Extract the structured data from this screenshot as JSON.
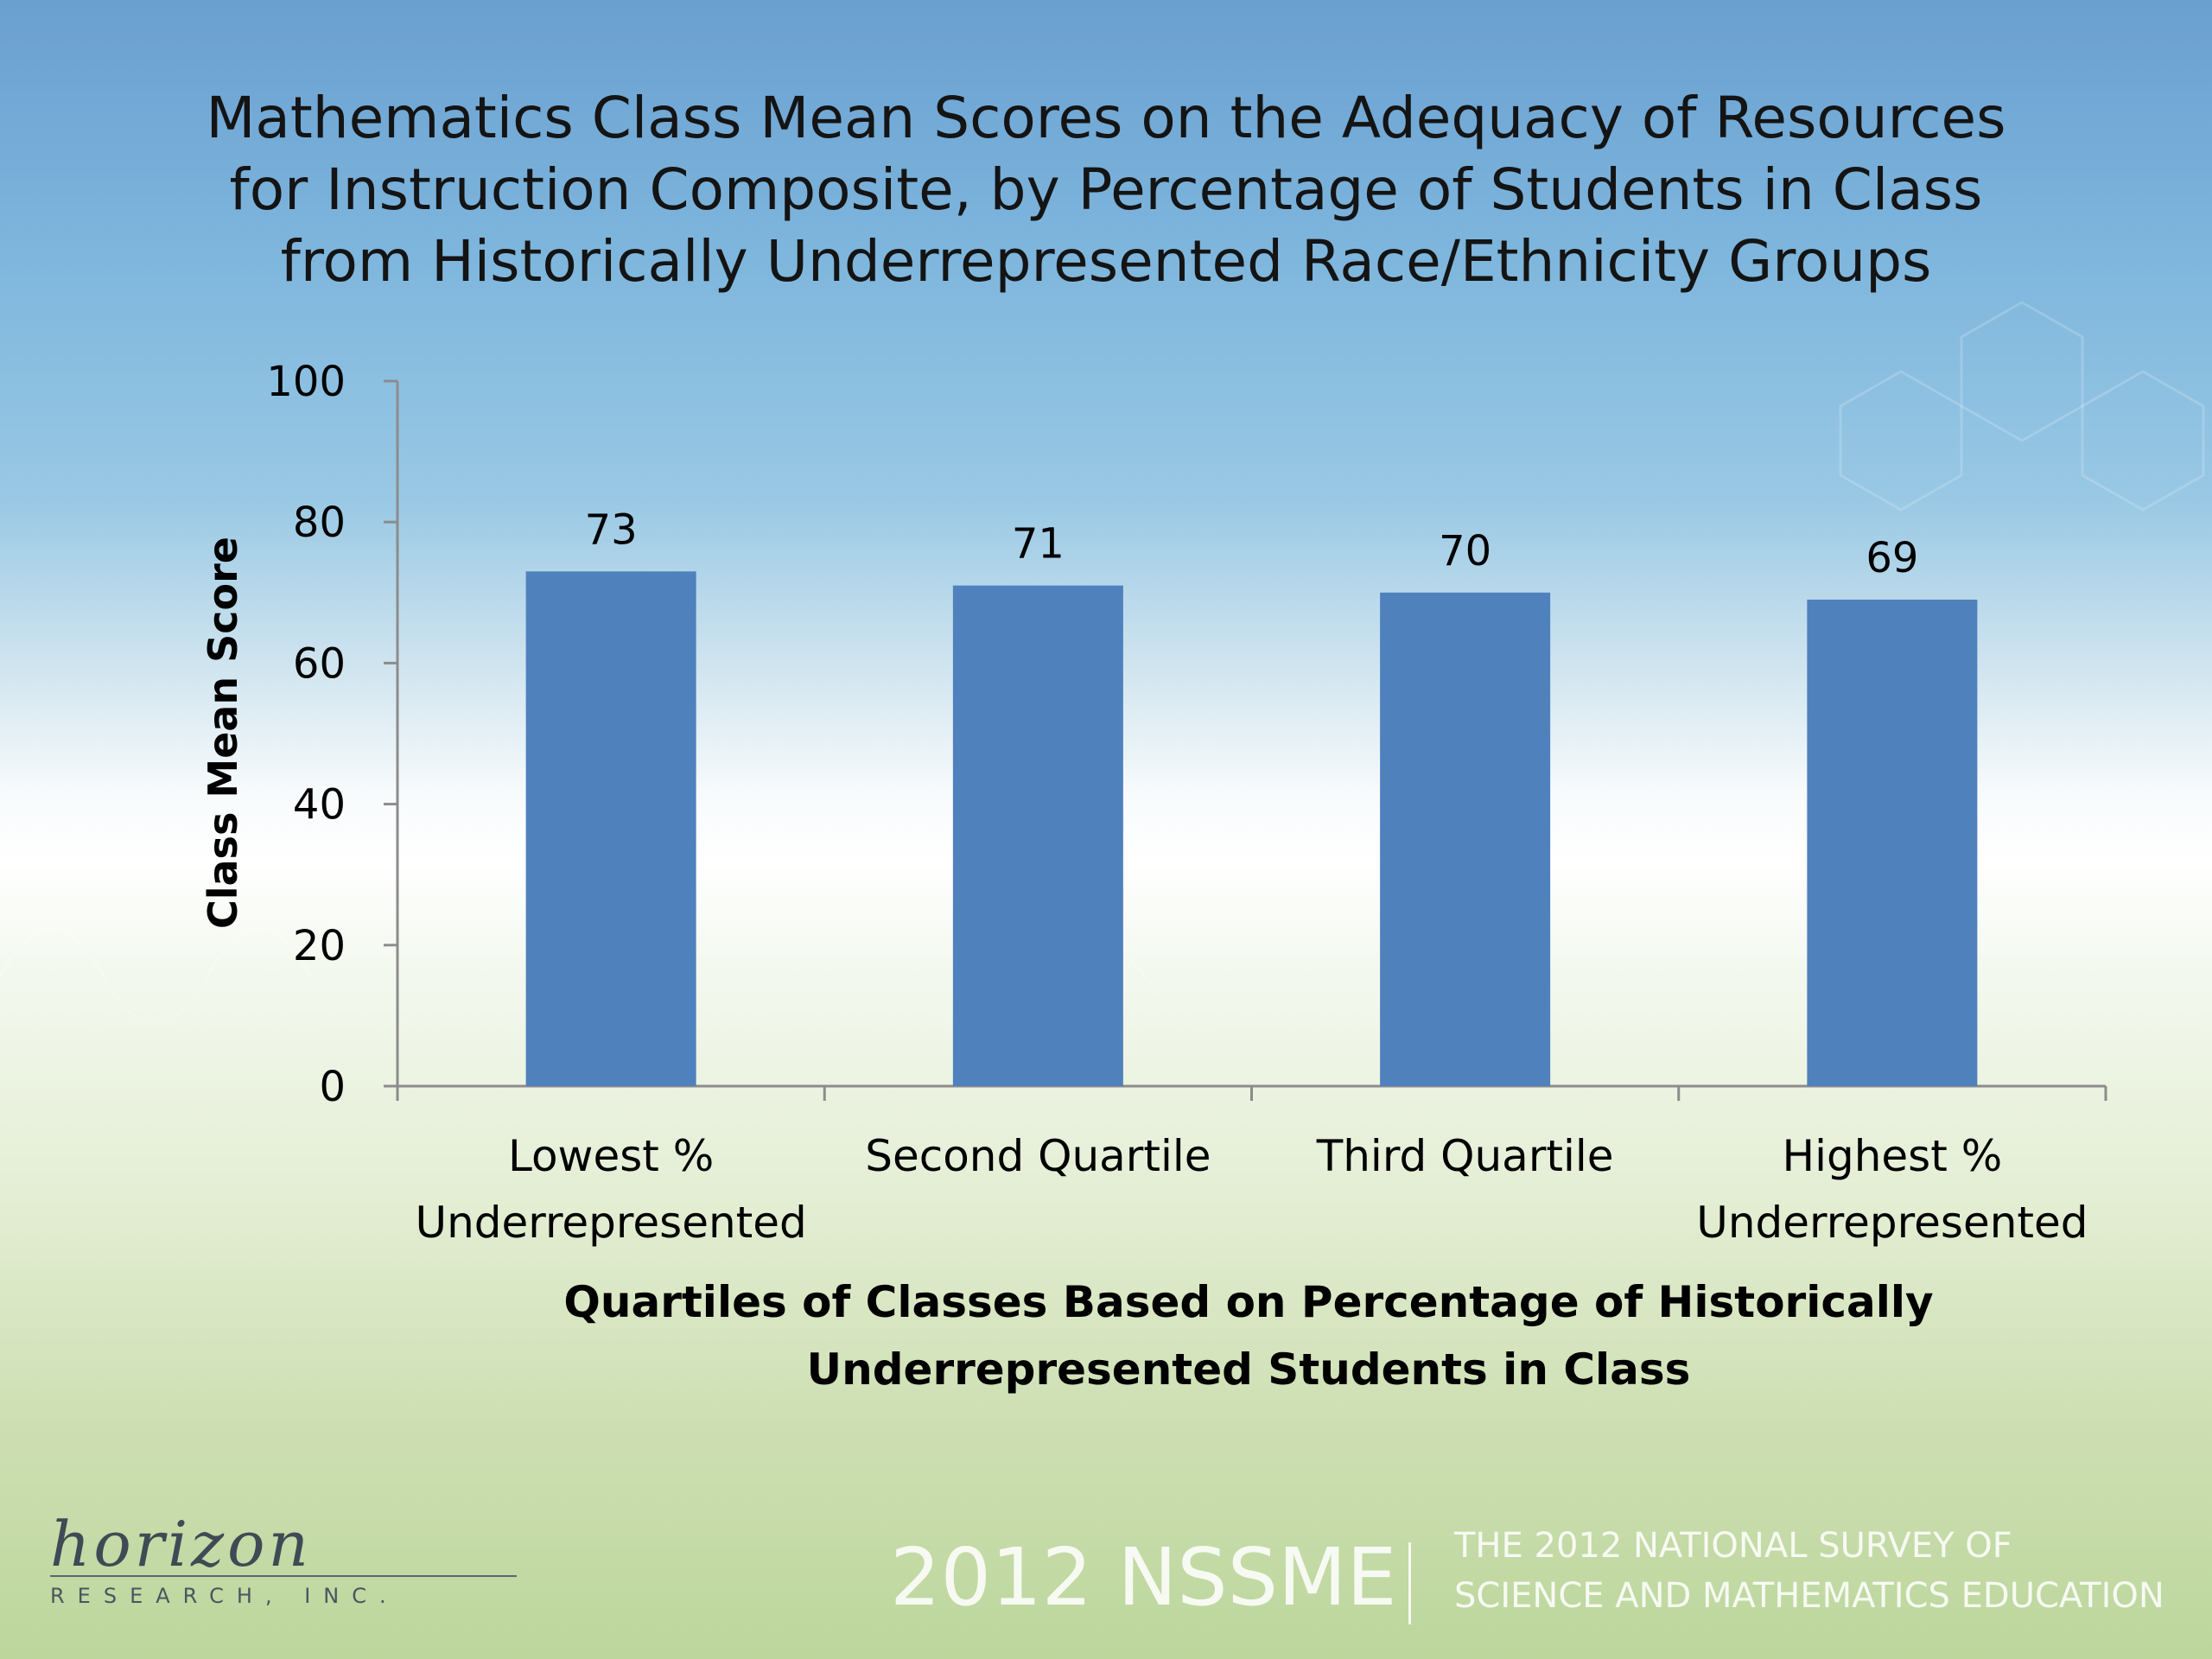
{
  "slide": {
    "title_lines": [
      "Mathematics Class Mean Scores on the Adequacy of Resources",
      "for Instruction Composite, by Percentage of Students in Class",
      "from Historically Underrepresented Race/Ethnicity Groups"
    ]
  },
  "chart_data": {
    "type": "bar",
    "title": "Mathematics Class Mean Scores on the Adequacy of Resources for Instruction Composite, by Percentage of Students in Class from Historically Underrepresented Race/Ethnicity Groups",
    "categories": [
      [
        "Lowest %",
        "Underrepresented"
      ],
      [
        "Second Quartile"
      ],
      [
        "Third Quartile"
      ],
      [
        "Highest %",
        "Underrepresented"
      ]
    ],
    "values": [
      73,
      71,
      70,
      69
    ],
    "data_labels": [
      "73",
      "71",
      "70",
      "69"
    ],
    "ylim": [
      0,
      100
    ],
    "yticks": [
      0,
      20,
      40,
      60,
      80,
      100
    ],
    "ylabel": "Class Mean Score",
    "xlabel_lines": [
      "Quartiles of Classes Based on Percentage of Historically",
      "Underrepresented Students in Class"
    ],
    "bar_color": "#4f81bd",
    "grid": false,
    "legend": "none"
  },
  "footer": {
    "logo_script": "horizon",
    "logo_subtitle": "RESEARCH, INC.",
    "brand": "2012 NSSME",
    "subtitle_lines": [
      "THE 2012 NATIONAL SURVEY OF",
      "SCIENCE AND MATHEMATICS EDUCATION"
    ]
  },
  "colors": {
    "bar": "#4f81bd",
    "axis": "#8c8c8c",
    "footer_text": "#f7faf2"
  }
}
